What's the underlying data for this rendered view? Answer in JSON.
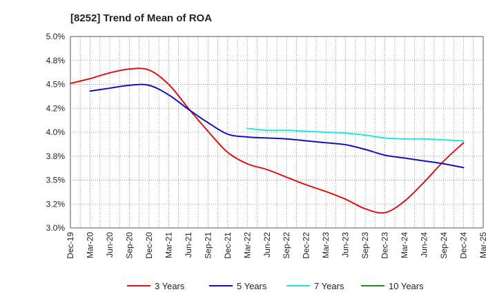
{
  "chart_data": {
    "type": "line",
    "title": "[8252]  Trend of Mean of ROA",
    "xlabel": "",
    "ylabel": "",
    "categories": [
      "Dec-19",
      "Mar-20",
      "Jun-20",
      "Sep-20",
      "Dec-20",
      "Mar-21",
      "Jun-21",
      "Sep-21",
      "Dec-21",
      "Mar-22",
      "Jun-22",
      "Sep-22",
      "Dec-22",
      "Mar-23",
      "Jun-23",
      "Sep-23",
      "Dec-23",
      "Mar-24",
      "Jun-24",
      "Sep-24",
      "Dec-24",
      "Mar-25"
    ],
    "ylim": [
      3.0,
      5.0
    ],
    "yticks": [
      {
        "value": 3.0,
        "label": "3.0%"
      },
      {
        "value": 3.25,
        "label": "3.2%"
      },
      {
        "value": 3.5,
        "label": "3.5%"
      },
      {
        "value": 3.75,
        "label": "3.8%"
      },
      {
        "value": 4.0,
        "label": "4.0%"
      },
      {
        "value": 4.25,
        "label": "4.2%"
      },
      {
        "value": 4.5,
        "label": "4.5%"
      },
      {
        "value": 4.75,
        "label": "4.8%"
      },
      {
        "value": 5.0,
        "label": "5.0%"
      }
    ],
    "grid": true,
    "legend_position": "bottom",
    "series": [
      {
        "name": "3 Years",
        "color": "#dd1111",
        "values": [
          4.51,
          4.56,
          4.62,
          4.66,
          4.65,
          4.5,
          4.25,
          4.01,
          3.79,
          3.67,
          3.61,
          3.53,
          3.45,
          3.38,
          3.3,
          3.2,
          3.16,
          3.28,
          3.48,
          3.7,
          3.89,
          null
        ]
      },
      {
        "name": "5 Years",
        "color": "#1111bb",
        "values": [
          null,
          4.43,
          4.46,
          4.49,
          4.49,
          4.39,
          4.24,
          4.1,
          3.98,
          3.95,
          3.94,
          3.93,
          3.91,
          3.89,
          3.87,
          3.82,
          3.76,
          3.73,
          3.7,
          3.67,
          3.63,
          null
        ]
      },
      {
        "name": "7 Years",
        "color": "#22e5e5",
        "values": [
          null,
          null,
          null,
          null,
          null,
          null,
          null,
          null,
          null,
          4.04,
          4.02,
          4.02,
          4.01,
          4.0,
          3.99,
          3.97,
          3.94,
          3.93,
          3.93,
          3.92,
          3.91,
          null
        ]
      },
      {
        "name": "10 Years",
        "color": "#228822",
        "values": [
          null,
          null,
          null,
          null,
          null,
          null,
          null,
          null,
          null,
          null,
          null,
          null,
          null,
          null,
          null,
          null,
          null,
          null,
          null,
          null,
          null,
          null
        ]
      }
    ]
  }
}
